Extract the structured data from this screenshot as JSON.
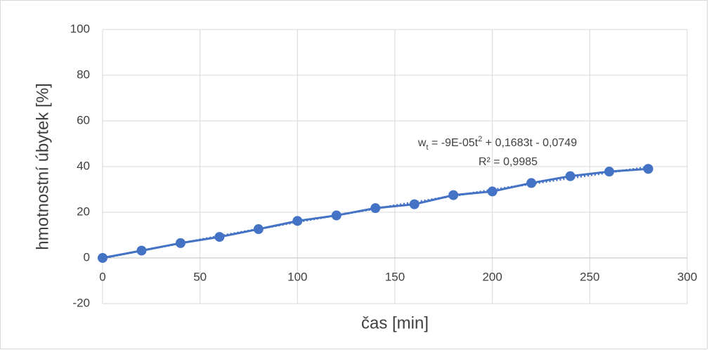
{
  "chart_data": {
    "type": "scatter-line",
    "x_label": "čas [min]",
    "y_label": "hmotnostní úbytek [%]",
    "x": [
      0,
      20,
      40,
      60,
      80,
      100,
      120,
      140,
      160,
      180,
      200,
      220,
      240,
      260,
      280
    ],
    "series": [
      {
        "color": "#4472c4",
        "values": [
          0,
          3.2,
          6.5,
          9.2,
          12.6,
          16.2,
          18.6,
          21.8,
          23.5,
          27.5,
          29.1,
          32.8,
          35.8,
          37.8,
          39.0
        ]
      }
    ],
    "xlim": [
      0,
      300
    ],
    "xticks": [
      0,
      50,
      100,
      150,
      200,
      250,
      300
    ],
    "ylim": [
      -20,
      100
    ],
    "yticks": [
      -20,
      0,
      20,
      40,
      60,
      80,
      100
    ],
    "grid": true,
    "trendline": {
      "order": 2,
      "style": "dotted",
      "equation": [
        {
          "text": "w"
        },
        {
          "text": "t",
          "sub": true
        },
        {
          "text": " = -9E-05t"
        },
        {
          "text": "2",
          "sup": true
        },
        {
          "text": " + 0,1683t - 0,0749"
        }
      ],
      "r2": "R² = 0,9985"
    }
  }
}
